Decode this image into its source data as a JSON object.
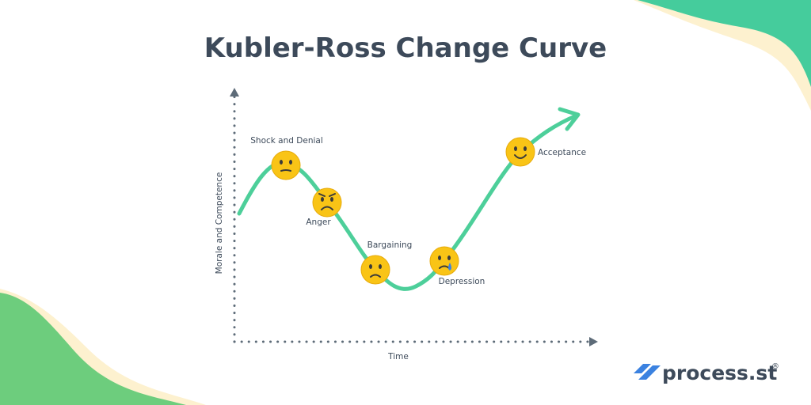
{
  "title": "Kubler-Ross Change Curve",
  "axes": {
    "y_label": "Morale and Competence",
    "x_label": "Time"
  },
  "stages": [
    {
      "label": "Shock and Denial"
    },
    {
      "label": "Anger"
    },
    {
      "label": "Bargaining"
    },
    {
      "label": "Depression"
    },
    {
      "label": "Acceptance"
    }
  ],
  "brand": {
    "name": "process.st",
    "mark": "®"
  }
}
